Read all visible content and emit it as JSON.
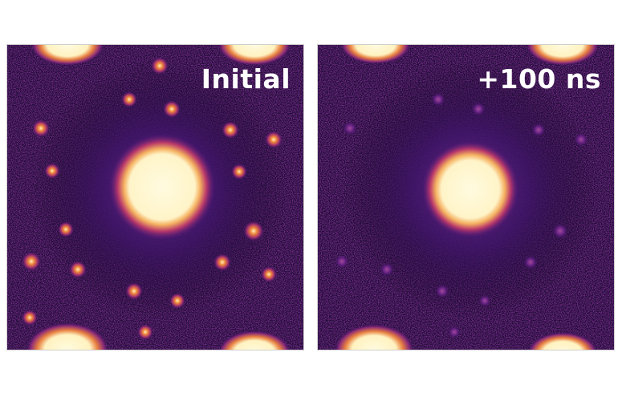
{
  "panels": [
    {
      "id": "left",
      "label": "Initial",
      "peak_glow": "#e1752f",
      "bright_spots": true
    },
    {
      "id": "right",
      "label": "+100 ns",
      "peak_glow": "#e1752f",
      "bright_spots": false
    }
  ],
  "colors": {
    "colormap": [
      "#0a0412",
      "#2a0a48",
      "#5a1a80",
      "#a0306a",
      "#e1752f",
      "#fff4c8"
    ],
    "label": "#ffffff"
  }
}
